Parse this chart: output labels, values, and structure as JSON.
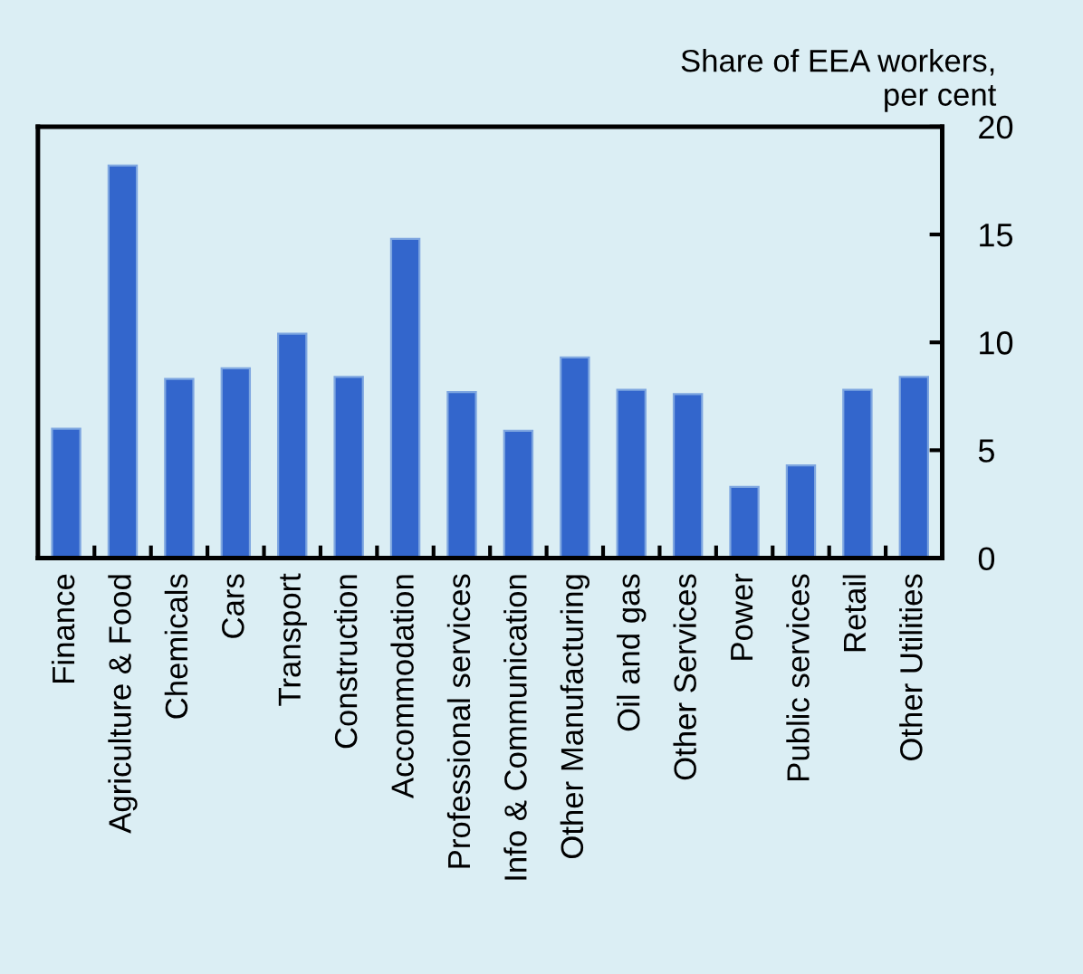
{
  "chart_data": {
    "type": "bar",
    "ylabel": "Share of EEA workers,\nper cent",
    "categories": [
      "Finance",
      "Agriculture & Food",
      "Chemicals",
      "Cars",
      "Transport",
      "Construction",
      "Accommodation",
      "Professional services",
      "Info & Communication",
      "Other Manufacturing",
      "Oil and gas",
      "Other Services",
      "Power",
      "Public services",
      "Retail",
      "Other Utilities"
    ],
    "values": [
      6.0,
      18.2,
      8.3,
      8.8,
      10.4,
      8.4,
      14.8,
      7.7,
      5.9,
      9.3,
      7.8,
      7.6,
      3.3,
      4.3,
      7.8,
      8.4
    ],
    "color": "#3366cc",
    "ylim": [
      0,
      20
    ],
    "yticks": [
      0,
      5,
      10,
      15,
      20
    ],
    "grid": false,
    "legend": false
  }
}
